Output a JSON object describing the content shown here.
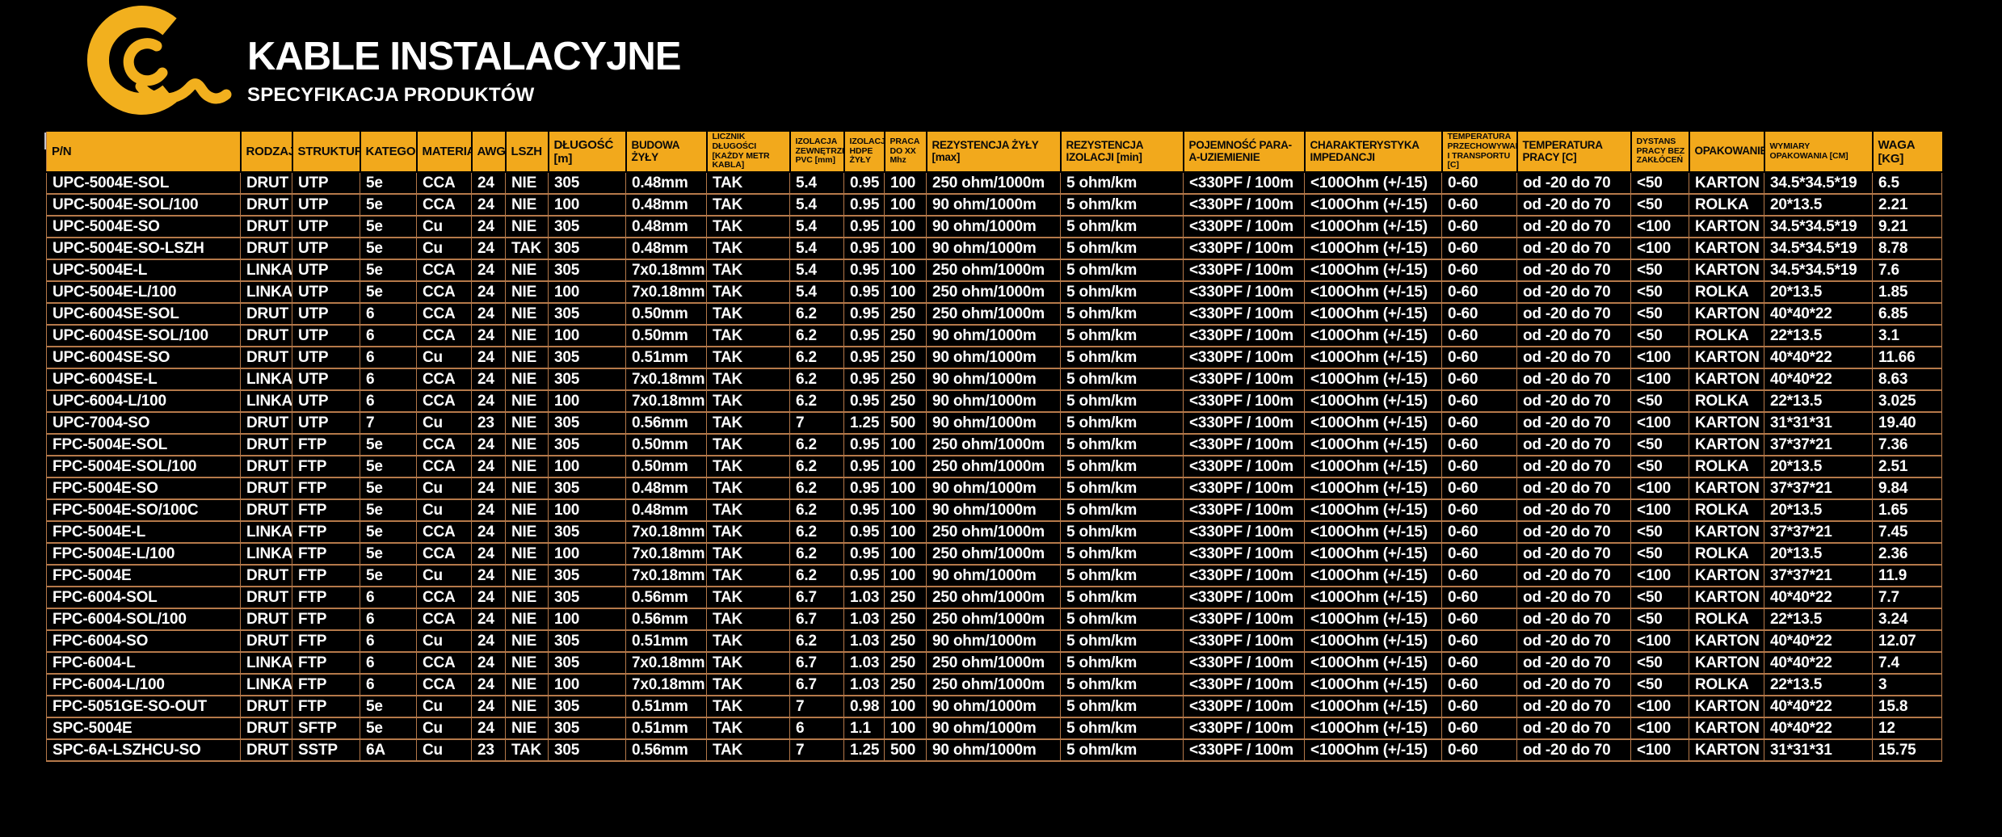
{
  "page": {
    "title": "KABLE INSTALACYJNE",
    "subtitle": "SPECYFIKACJA PRODUKTÓW"
  },
  "colors": {
    "accent_yellow": "#F2A91C",
    "logo_yellow": "#F2B01E",
    "table_border": "#B5794A",
    "background": "#000000",
    "header_text": "#0A0A0A",
    "cell_text": "#FFFFFF"
  },
  "logo": {
    "icon": "c-swirl-logo"
  },
  "table": {
    "columns": [
      "P/N",
      "RODZAJ",
      "STRUKTURA",
      "KATEGORIA",
      "MATERIAŁ",
      "AWG",
      "LSZH",
      "DŁUGOŚĆ [m]",
      "BUDOWA ŻYŁY",
      "LICZNIK DŁUGOŚCI [KAŻDY METR KABLA]",
      "IZOLACJA ZEWNĘTRZNA PVC [mm]",
      "IZOLACJA HDPE ŻYŁY",
      "PRACA DO XX Mhz",
      "REZYSTENCJA ŻYŁY [max]",
      "REZYSTENCJA IZOLACJI [min]",
      "POJEMNOŚĆ PARA-A-UZIEMIENIE",
      "CHARAKTERYSTYKA IMPEDANCJI",
      "TEMPERATURA PRZECHOWYWANIA I TRANSPORTU [C]",
      "TEMPERATURA PRACY [C]",
      "DYSTANS PRACY BEZ ZAKŁÓCEŃ",
      "OPAKOWANIE",
      "WYMIARY OPAKOWANIA [CM]",
      "WAGA [KG]"
    ],
    "rows": [
      [
        "UPC-5004E-SOL",
        "DRUT",
        "UTP",
        "5e",
        "CCA",
        "24",
        "NIE",
        "305",
        "0.48mm",
        "TAK",
        "5.4",
        "0.95",
        "100",
        "250 ohm/1000m",
        "5 ohm/km",
        "<330PF / 100m",
        "<100Ohm (+/-15)",
        "0-60",
        "od -20 do 70",
        "<50",
        "KARTON",
        "34.5*34.5*19",
        "6.5"
      ],
      [
        "UPC-5004E-SOL/100",
        "DRUT",
        "UTP",
        "5e",
        "CCA",
        "24",
        "NIE",
        "100",
        "0.48mm",
        "TAK",
        "5.4",
        "0.95",
        "100",
        "90 ohm/1000m",
        "5 ohm/km",
        "<330PF / 100m",
        "<100Ohm (+/-15)",
        "0-60",
        "od -20 do 70",
        "<50",
        "ROLKA",
        "20*13.5",
        "2.21"
      ],
      [
        "UPC-5004E-SO",
        "DRUT",
        "UTP",
        "5e",
        "Cu",
        "24",
        "NIE",
        "305",
        "0.48mm",
        "TAK",
        "5.4",
        "0.95",
        "100",
        "90 ohm/1000m",
        "5 ohm/km",
        "<330PF / 100m",
        "<100Ohm (+/-15)",
        "0-60",
        "od -20 do 70",
        "<100",
        "KARTON",
        "34.5*34.5*19",
        "9.21"
      ],
      [
        "UPC-5004E-SO-LSZH",
        "DRUT",
        "UTP",
        "5e",
        "Cu",
        "24",
        "TAK",
        "305",
        "0.48mm",
        "TAK",
        "5.4",
        "0.95",
        "100",
        "90 ohm/1000m",
        "5 ohm/km",
        "<330PF / 100m",
        "<100Ohm (+/-15)",
        "0-60",
        "od -20 do 70",
        "<100",
        "KARTON",
        "34.5*34.5*19",
        "8.78"
      ],
      [
        "UPC-5004E-L",
        "LINKA",
        "UTP",
        "5e",
        "CCA",
        "24",
        "NIE",
        "305",
        "7x0.18mm",
        "TAK",
        "5.4",
        "0.95",
        "100",
        "250 ohm/1000m",
        "5 ohm/km",
        "<330PF / 100m",
        "<100Ohm (+/-15)",
        "0-60",
        "od -20 do 70",
        "<50",
        "KARTON",
        "34.5*34.5*19",
        "7.6"
      ],
      [
        "UPC-5004E-L/100",
        "LINKA",
        "UTP",
        "5e",
        "CCA",
        "24",
        "NIE",
        "100",
        "7x0.18mm",
        "TAK",
        "5.4",
        "0.95",
        "100",
        "250 ohm/1000m",
        "5 ohm/km",
        "<330PF / 100m",
        "<100Ohm (+/-15)",
        "0-60",
        "od -20 do 70",
        "<50",
        "ROLKA",
        "20*13.5",
        "1.85"
      ],
      [
        "UPC-6004SE-SOL",
        "DRUT",
        "UTP",
        "6",
        "CCA",
        "24",
        "NIE",
        "305",
        "0.50mm",
        "TAK",
        "6.2",
        "0.95",
        "250",
        "250 ohm/1000m",
        "5 ohm/km",
        "<330PF / 100m",
        "<100Ohm (+/-15)",
        "0-60",
        "od -20 do 70",
        "<50",
        "KARTON",
        "40*40*22",
        "6.85"
      ],
      [
        "UPC-6004SE-SOL/100",
        "DRUT",
        "UTP",
        "6",
        "CCA",
        "24",
        "NIE",
        "100",
        "0.50mm",
        "TAK",
        "6.2",
        "0.95",
        "250",
        "90 ohm/1000m",
        "5 ohm/km",
        "<330PF / 100m",
        "<100Ohm (+/-15)",
        "0-60",
        "od -20 do 70",
        "<50",
        "ROLKA",
        "22*13.5",
        "3.1"
      ],
      [
        "UPC-6004SE-SO",
        "DRUT",
        "UTP",
        "6",
        "Cu",
        "24",
        "NIE",
        "305",
        "0.51mm",
        "TAK",
        "6.2",
        "0.95",
        "250",
        "90 ohm/1000m",
        "5 ohm/km",
        "<330PF / 100m",
        "<100Ohm (+/-15)",
        "0-60",
        "od -20 do 70",
        "<100",
        "KARTON",
        "40*40*22",
        "11.66"
      ],
      [
        "UPC-6004SE-L",
        "LINKA",
        "UTP",
        "6",
        "CCA",
        "24",
        "NIE",
        "305",
        "7x0.18mm",
        "TAK",
        "6.2",
        "0.95",
        "250",
        "90 ohm/1000m",
        "5 ohm/km",
        "<330PF / 100m",
        "<100Ohm (+/-15)",
        "0-60",
        "od -20 do 70",
        "<100",
        "KARTON",
        "40*40*22",
        "8.63"
      ],
      [
        "UPC-6004-L/100",
        "LINKA",
        "UTP",
        "6",
        "CCA",
        "24",
        "NIE",
        "100",
        "7x0.18mm",
        "TAK",
        "6.2",
        "0.95",
        "250",
        "90 ohm/1000m",
        "5 ohm/km",
        "<330PF / 100m",
        "<100Ohm (+/-15)",
        "0-60",
        "od -20 do 70",
        "<50",
        "ROLKA",
        "22*13.5",
        "3.025"
      ],
      [
        "UPC-7004-SO",
        "DRUT",
        "UTP",
        "7",
        "Cu",
        "23",
        "NIE",
        "305",
        "0.56mm",
        "TAK",
        "7",
        "1.25",
        "500",
        "90 ohm/1000m",
        "5 ohm/km",
        "<330PF / 100m",
        "<100Ohm (+/-15)",
        "0-60",
        "od -20 do 70",
        "<100",
        "KARTON",
        "31*31*31",
        "19.40"
      ],
      [
        "FPC-5004E-SOL",
        "DRUT",
        "FTP",
        "5e",
        "CCA",
        "24",
        "NIE",
        "305",
        "0.50mm",
        "TAK",
        "6.2",
        "0.95",
        "100",
        "250 ohm/1000m",
        "5 ohm/km",
        "<330PF / 100m",
        "<100Ohm (+/-15)",
        "0-60",
        "od -20 do 70",
        "<50",
        "KARTON",
        "37*37*21",
        "7.36"
      ],
      [
        "FPC-5004E-SOL/100",
        "DRUT",
        "FTP",
        "5e",
        "CCA",
        "24",
        "NIE",
        "100",
        "0.50mm",
        "TAK",
        "6.2",
        "0.95",
        "100",
        "250 ohm/1000m",
        "5 ohm/km",
        "<330PF / 100m",
        "<100Ohm (+/-15)",
        "0-60",
        "od -20 do 70",
        "<50",
        "ROLKA",
        "20*13.5",
        "2.51"
      ],
      [
        "FPC-5004E-SO",
        "DRUT",
        "FTP",
        "5e",
        "Cu",
        "24",
        "NIE",
        "305",
        "0.48mm",
        "TAK",
        "6.2",
        "0.95",
        "100",
        "90 ohm/1000m",
        "5 ohm/km",
        "<330PF / 100m",
        "<100Ohm (+/-15)",
        "0-60",
        "od -20 do 70",
        "<100",
        "KARTON",
        "37*37*21",
        "9.84"
      ],
      [
        "FPC-5004E-SO/100C",
        "DRUT",
        "FTP",
        "5e",
        "Cu",
        "24",
        "NIE",
        "100",
        "0.48mm",
        "TAK",
        "6.2",
        "0.95",
        "100",
        "90 ohm/1000m",
        "5 ohm/km",
        "<330PF / 100m",
        "<100Ohm (+/-15)",
        "0-60",
        "od -20 do 70",
        "<100",
        "ROLKA",
        "20*13.5",
        "1.65"
      ],
      [
        "FPC-5004E-L",
        "LINKA",
        "FTP",
        "5e",
        "CCA",
        "24",
        "NIE",
        "305",
        "7x0.18mm",
        "TAK",
        "6.2",
        "0.95",
        "100",
        "250 ohm/1000m",
        "5 ohm/km",
        "<330PF / 100m",
        "<100Ohm (+/-15)",
        "0-60",
        "od -20 do 70",
        "<50",
        "KARTON",
        "37*37*21",
        "7.45"
      ],
      [
        "FPC-5004E-L/100",
        "LINKA",
        "FTP",
        "5e",
        "CCA",
        "24",
        "NIE",
        "100",
        "7x0.18mm",
        "TAK",
        "6.2",
        "0.95",
        "100",
        "250 ohm/1000m",
        "5 ohm/km",
        "<330PF / 100m",
        "<100Ohm (+/-15)",
        "0-60",
        "od -20 do 70",
        "<50",
        "ROLKA",
        "20*13.5",
        "2.36"
      ],
      [
        "FPC-5004E",
        "DRUT",
        "FTP",
        "5e",
        "Cu",
        "24",
        "NIE",
        "305",
        "7x0.18mm",
        "TAK",
        "6.2",
        "0.95",
        "100",
        "90 ohm/1000m",
        "5 ohm/km",
        "<330PF / 100m",
        "<100Ohm (+/-15)",
        "0-60",
        "od -20 do 70",
        "<100",
        "KARTON",
        "37*37*21",
        "11.9"
      ],
      [
        "FPC-6004-SOL",
        "DRUT",
        "FTP",
        "6",
        "CCA",
        "24",
        "NIE",
        "305",
        "0.56mm",
        "TAK",
        "6.7",
        "1.03",
        "250",
        "250 ohm/1000m",
        "5 ohm/km",
        "<330PF / 100m",
        "<100Ohm (+/-15)",
        "0-60",
        "od -20 do 70",
        "<50",
        "KARTON",
        "40*40*22",
        "7.7"
      ],
      [
        "FPC-6004-SOL/100",
        "DRUT",
        "FTP",
        "6",
        "CCA",
        "24",
        "NIE",
        "100",
        "0.56mm",
        "TAK",
        "6.7",
        "1.03",
        "250",
        "250 ohm/1000m",
        "5 ohm/km",
        "<330PF / 100m",
        "<100Ohm (+/-15)",
        "0-60",
        "od -20 do 70",
        "<50",
        "ROLKA",
        "22*13.5",
        "3.24"
      ],
      [
        "FPC-6004-SO",
        "DRUT",
        "FTP",
        "6",
        "Cu",
        "24",
        "NIE",
        "305",
        "0.51mm",
        "TAK",
        "6.2",
        "1.03",
        "250",
        "90 ohm/1000m",
        "5 ohm/km",
        "<330PF / 100m",
        "<100Ohm (+/-15)",
        "0-60",
        "od -20 do 70",
        "<100",
        "KARTON",
        "40*40*22",
        "12.07"
      ],
      [
        "FPC-6004-L",
        "LINKA",
        "FTP",
        "6",
        "CCA",
        "24",
        "NIE",
        "305",
        "7x0.18mm",
        "TAK",
        "6.7",
        "1.03",
        "250",
        "250 ohm/1000m",
        "5 ohm/km",
        "<330PF / 100m",
        "<100Ohm (+/-15)",
        "0-60",
        "od -20 do 70",
        "<50",
        "KARTON",
        "40*40*22",
        "7.4"
      ],
      [
        "FPC-6004-L/100",
        "LINKA",
        "FTP",
        "6",
        "CCA",
        "24",
        "NIE",
        "100",
        "7x0.18mm",
        "TAK",
        "6.7",
        "1.03",
        "250",
        "250 ohm/1000m",
        "5 ohm/km",
        "<330PF / 100m",
        "<100Ohm (+/-15)",
        "0-60",
        "od -20 do 70",
        "<50",
        "ROLKA",
        "22*13.5",
        "3"
      ],
      [
        "FPC-5051GE-SO-OUT",
        "DRUT",
        "FTP",
        "5e",
        "Cu",
        "24",
        "NIE",
        "305",
        "0.51mm",
        "TAK",
        "7",
        "0.98",
        "100",
        "90 ohm/1000m",
        "5 ohm/km",
        "<330PF / 100m",
        "<100Ohm (+/-15)",
        "0-60",
        "od -20 do 70",
        "<100",
        "KARTON",
        "40*40*22",
        "15.8"
      ],
      [
        "SPC-5004E",
        "DRUT",
        "SFTP",
        "5e",
        "Cu",
        "24",
        "NIE",
        "305",
        "0.51mm",
        "TAK",
        "6",
        "1.1",
        "100",
        "90 ohm/1000m",
        "5 ohm/km",
        "<330PF / 100m",
        "<100Ohm (+/-15)",
        "0-60",
        "od -20 do 70",
        "<100",
        "KARTON",
        "40*40*22",
        "12"
      ],
      [
        "SPC-6A-LSZHCU-SO",
        "DRUT",
        "SSTP",
        "6A",
        "Cu",
        "23",
        "TAK",
        "305",
        "0.56mm",
        "TAK",
        "7",
        "1.25",
        "500",
        "90 ohm/1000m",
        "5 ohm/km",
        "<330PF / 100m",
        "<100Ohm (+/-15)",
        "0-60",
        "od -20 do 70",
        "<100",
        "KARTON",
        "31*31*31",
        "15.75"
      ]
    ]
  }
}
